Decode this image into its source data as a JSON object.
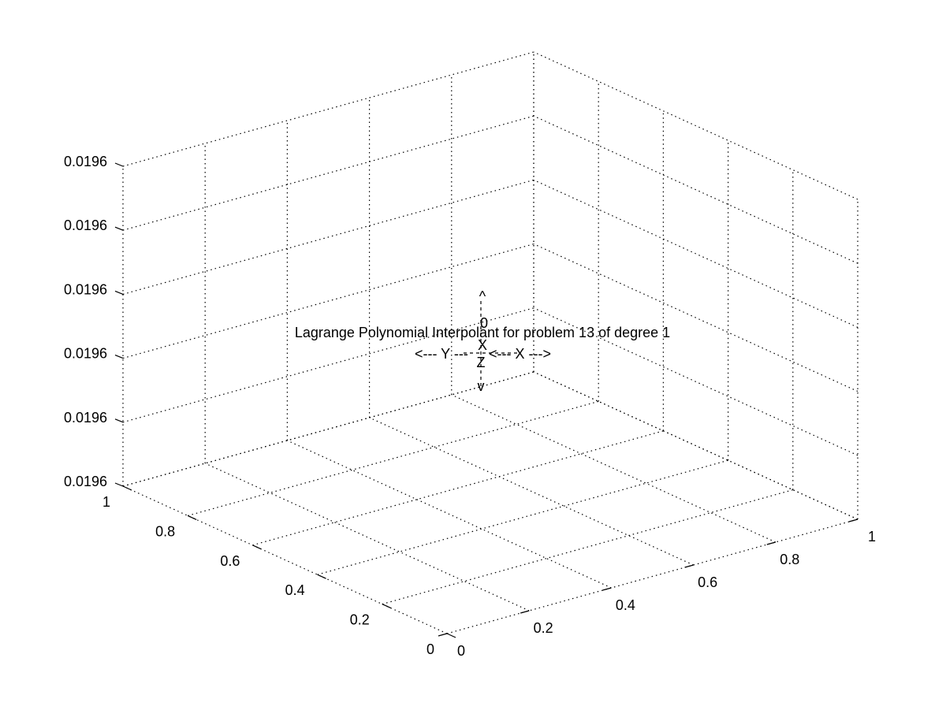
{
  "chart_data": {
    "type": "surface",
    "title": "Lagrange Polynomial Interpolant for problem 13 of degree 1",
    "xlabel": "",
    "ylabel": "",
    "zlabel": "",
    "xlim": [
      0,
      1
    ],
    "ylim": [
      0,
      1
    ],
    "zlim": [
      0.0196,
      0.0196
    ],
    "x_ticks": [
      "0",
      "0.2",
      "0.4",
      "0.6",
      "0.8",
      "1"
    ],
    "y_ticks": [
      "0",
      "0.2",
      "0.4",
      "0.6",
      "0.8",
      "1"
    ],
    "z_ticks": [
      "0.0196",
      "0.0196",
      "0.0196",
      "0.0196",
      "0.0196",
      "0.0196"
    ],
    "grid": true,
    "orientation_legend": {
      "up_arrow": "^",
      "zero_marker": "0",
      "center_x": "X",
      "center_z": "Z",
      "down_arrow": "v",
      "y_arrow": "<--- Y ---",
      "x_arrow": "<--- X --->"
    }
  }
}
